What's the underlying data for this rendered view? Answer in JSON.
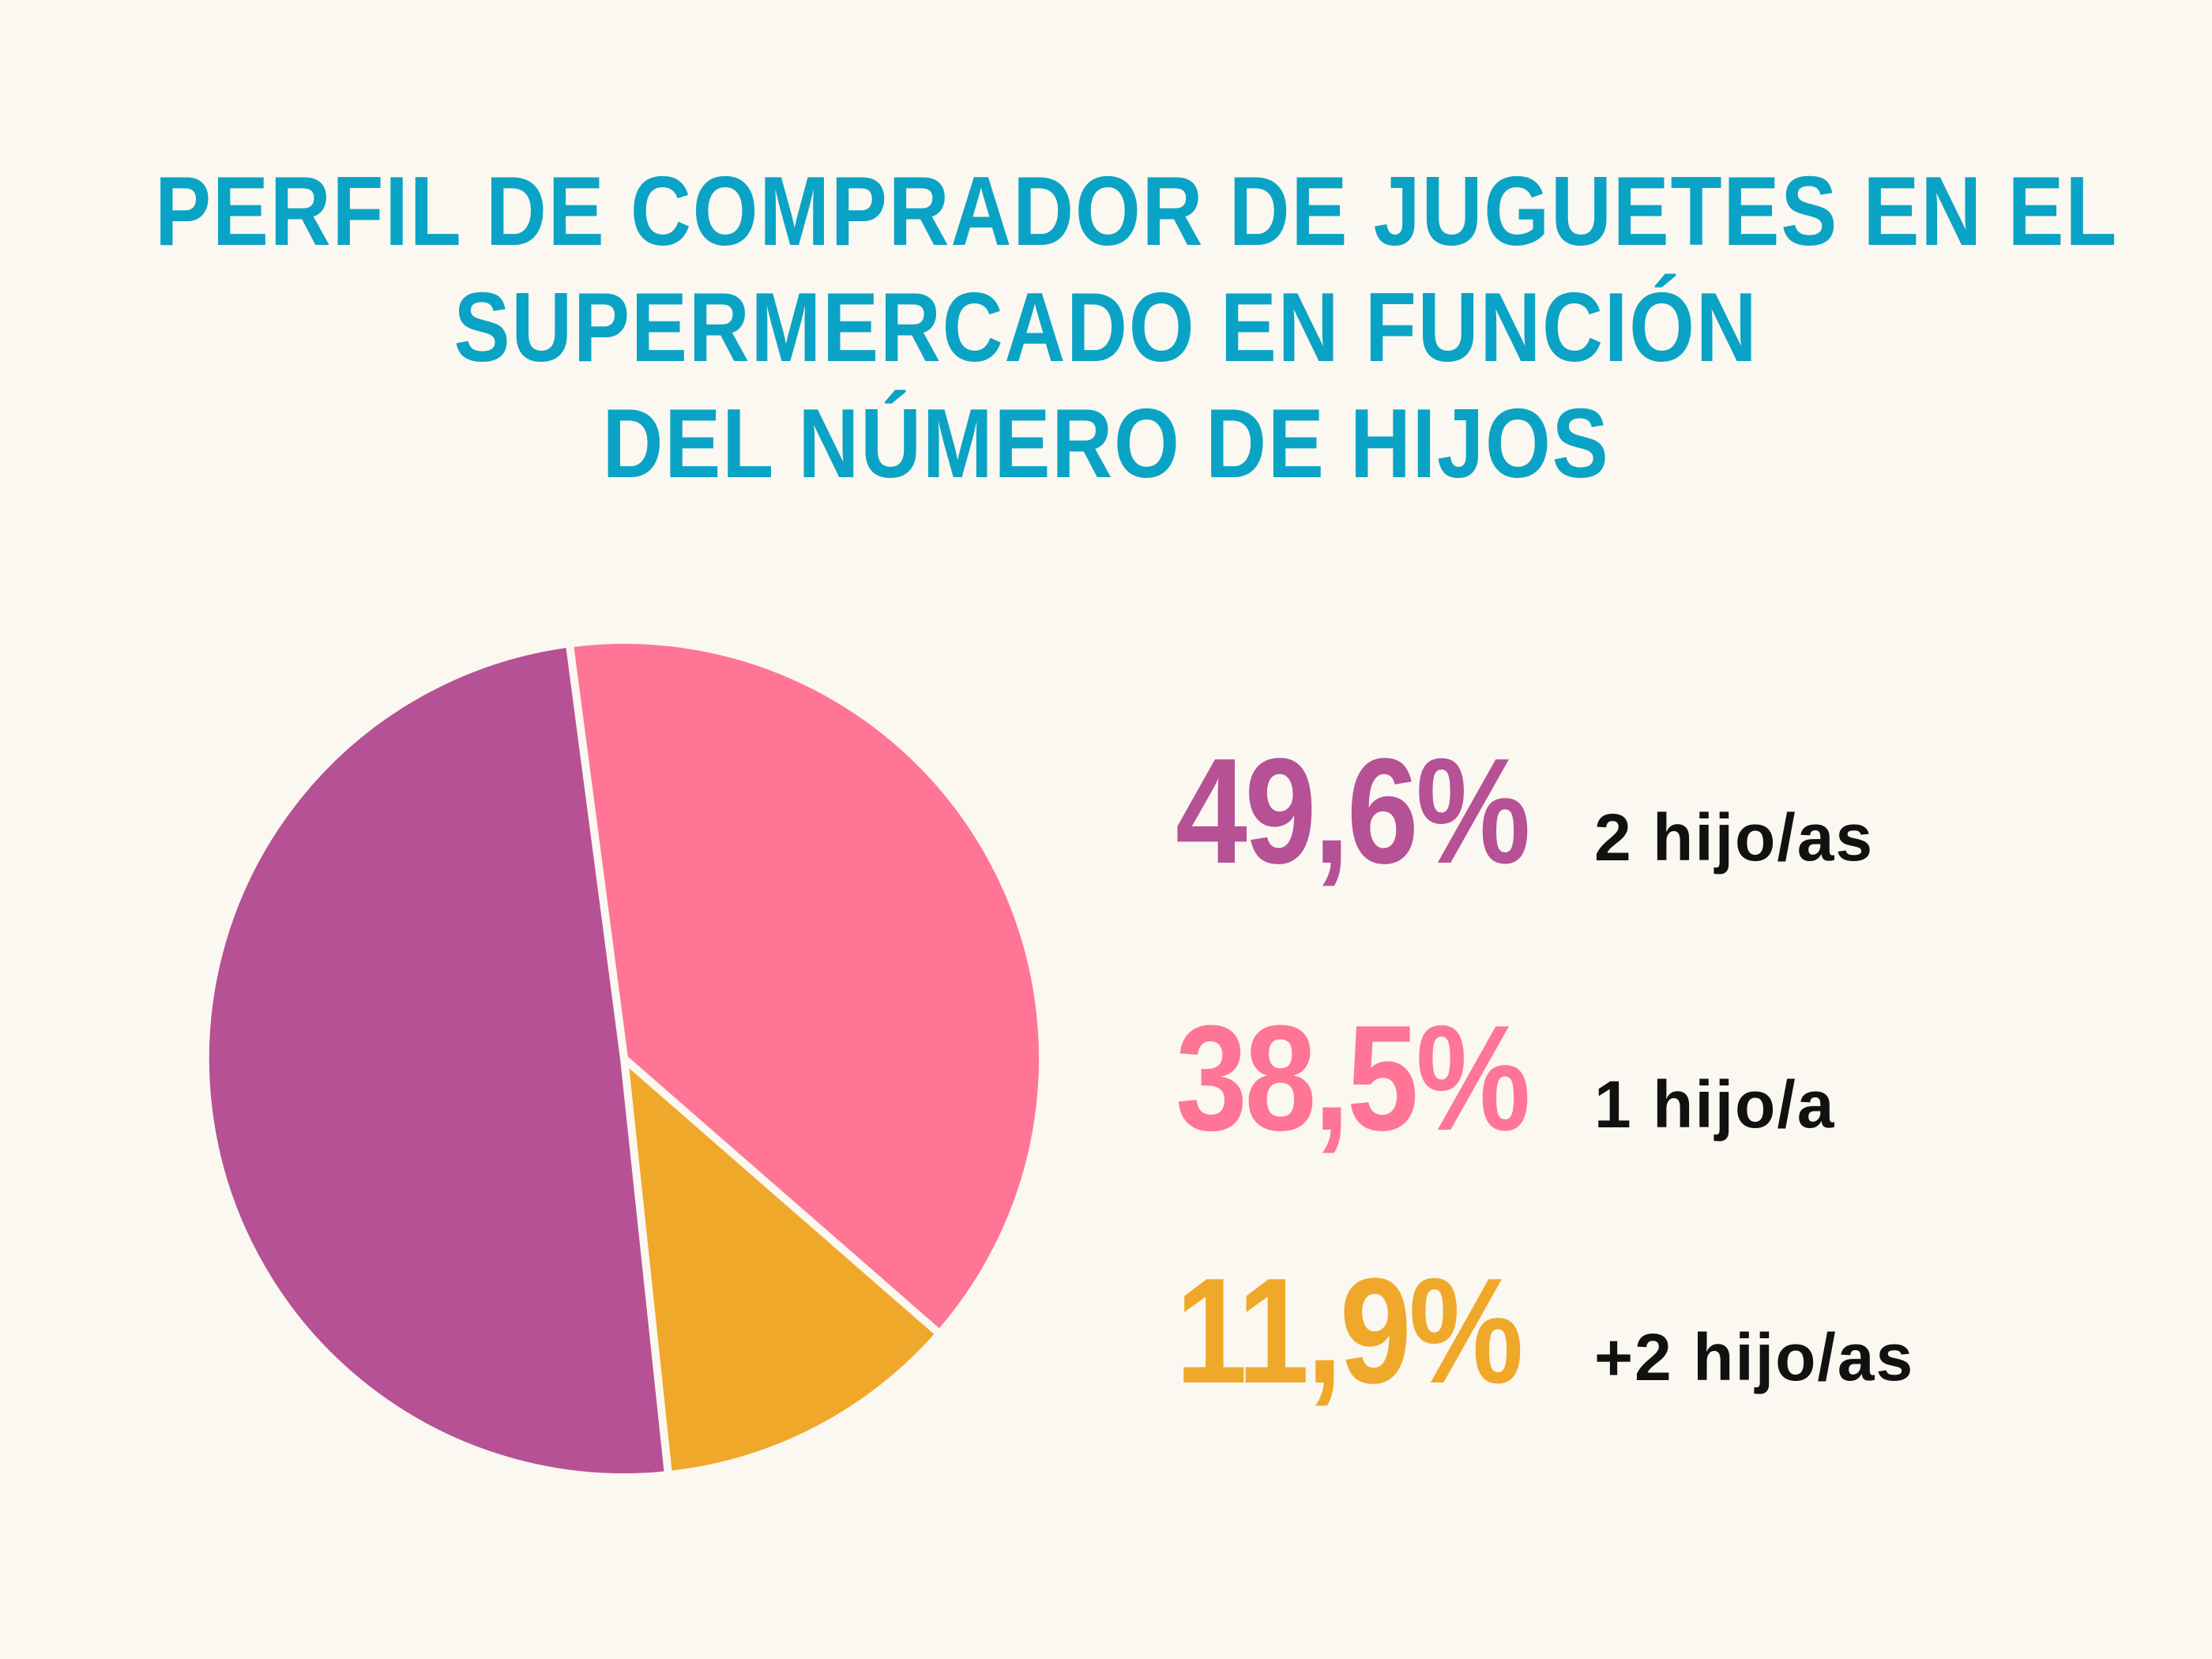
{
  "title_lines": [
    "PERFIL DE COMPRADOR DE JUGUETES EN EL",
    "SUPERMERCADO EN FUNCIÓN",
    "DEL NÚMERO DE HIJOS"
  ],
  "legend": [
    {
      "value_text": "49,6%",
      "label": "2 hijo/as"
    },
    {
      "value_text": "38,5%",
      "label": "1 hijo/a"
    },
    {
      "value_text": "11,9%",
      "label": "+2 hijo/as"
    }
  ],
  "chart_data": {
    "type": "pie",
    "title": "PERFIL DE COMPRADOR DE JUGUETES EN EL SUPERMERCADO EN FUNCIÓN DEL NÚMERO DE HIJOS",
    "categories": [
      "2 hijo/as",
      "1 hijo/a",
      "+2 hijo/as"
    ],
    "values": [
      49.6,
      38.5,
      11.9
    ],
    "colors": [
      "#b65196",
      "#ff7595",
      "#f0a82a"
    ],
    "legend_placement": "right"
  }
}
